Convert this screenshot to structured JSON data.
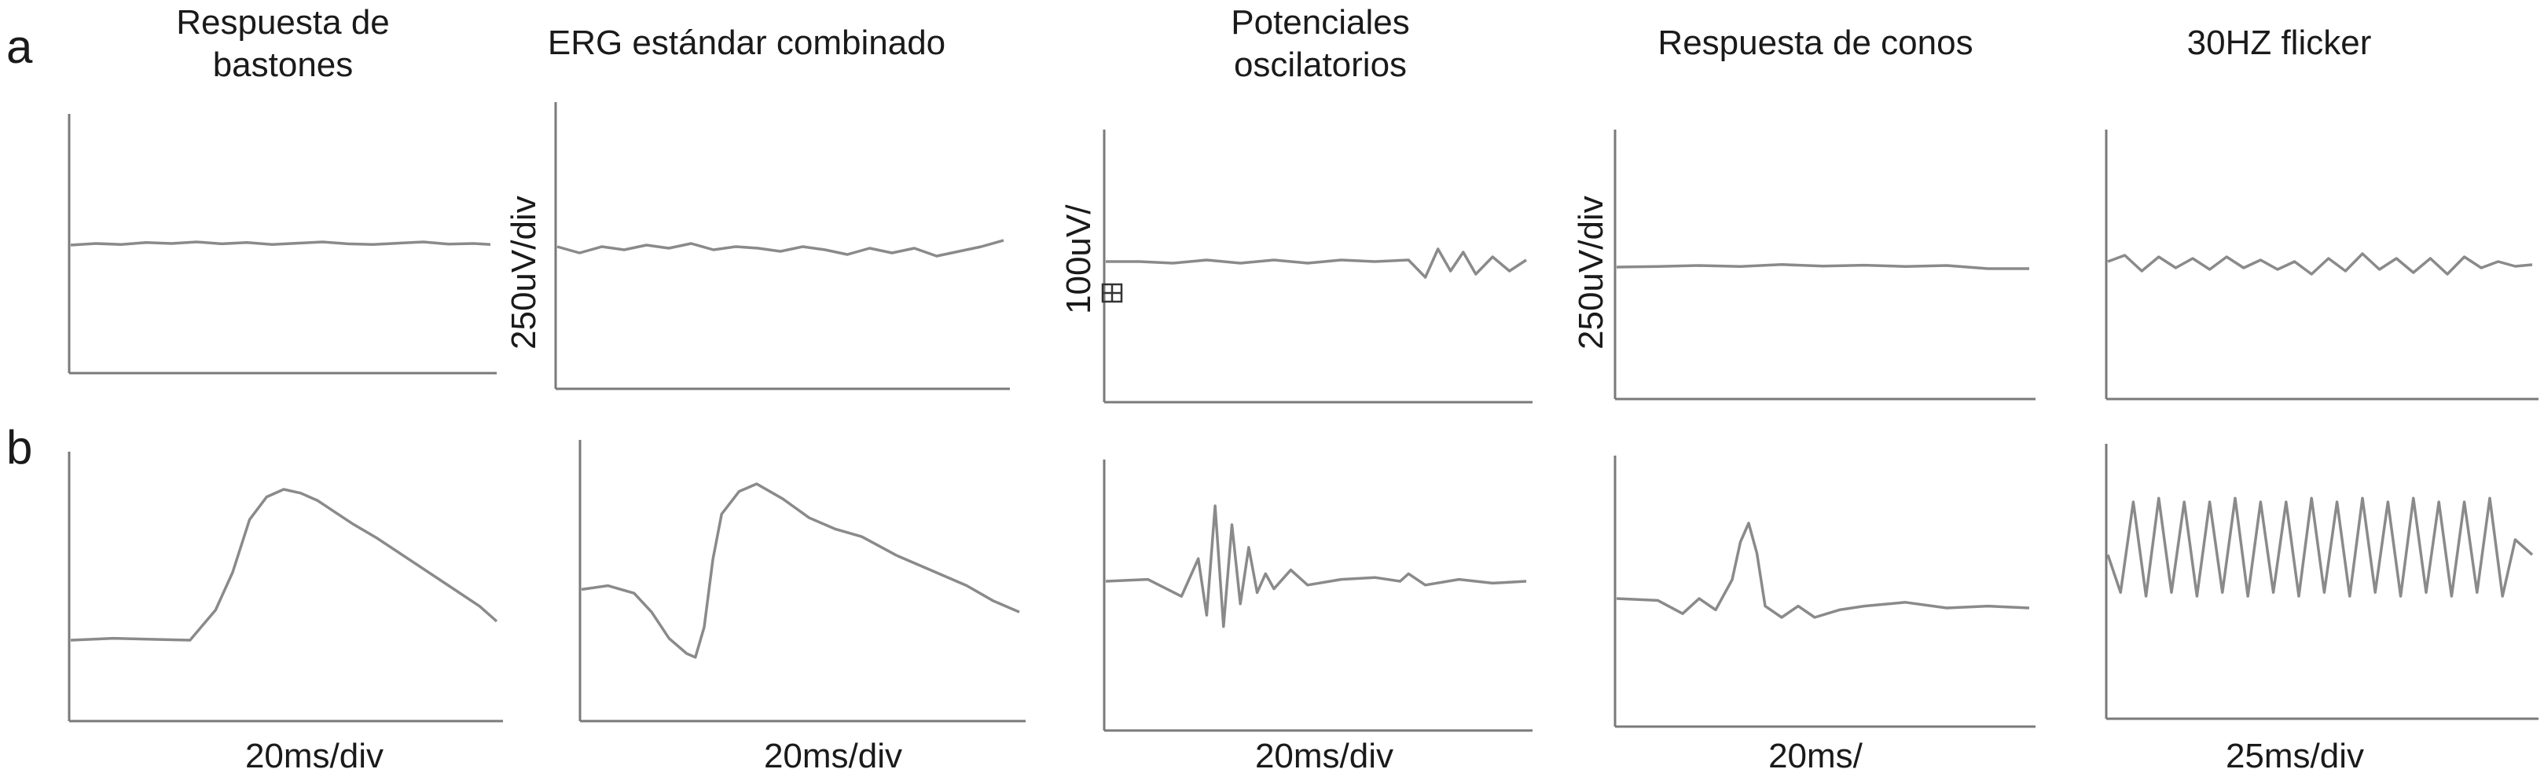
{
  "row_labels": [
    "a",
    "b"
  ],
  "column_titles": [
    "Respuesta de\nbastones",
    "ERG estándar combinado",
    "Potenciales\noscilatorios",
    "Respuesta de conos",
    "30HZ flicker"
  ],
  "x_scale_labels": [
    "20ms/div",
    "20ms/div",
    "20ms/div",
    "20ms/",
    "25ms/div"
  ],
  "y_scale_labels": [
    "250uV/div",
    "100uV/",
    "250uV/div"
  ],
  "colors": {
    "trace": "#8a8a8a",
    "axis": "#7a7a7a",
    "text": "#1a1a1a"
  },
  "chart_data": [
    {
      "type": "line",
      "row": "a",
      "column": "Respuesta de bastones",
      "x": [
        0,
        6,
        12,
        18,
        24,
        30,
        36,
        42,
        48,
        54,
        60,
        66,
        72,
        78,
        84,
        90,
        96,
        100
      ],
      "y": [
        0,
        0.05,
        0.02,
        0.08,
        0.05,
        0.1,
        0.04,
        0.08,
        0.02,
        0.06,
        0.1,
        0.04,
        0.02,
        0.06,
        0.1,
        0.03,
        0.05,
        0.02
      ]
    },
    {
      "type": "line",
      "row": "a",
      "column": "ERG estándar combinado",
      "x": [
        0,
        5,
        10,
        15,
        20,
        25,
        30,
        35,
        40,
        45,
        50,
        55,
        60,
        65,
        70,
        75,
        80,
        85,
        90,
        95,
        100
      ],
      "y": [
        0.1,
        -0.1,
        0.1,
        0,
        0.15,
        0.05,
        0.2,
        0,
        0.1,
        0.05,
        -0.05,
        0.1,
        0,
        -0.15,
        0.05,
        -0.1,
        0.05,
        -0.2,
        -0.05,
        0.1,
        0.3
      ]
    },
    {
      "type": "line",
      "row": "a",
      "column": "Potenciales oscilatorios",
      "x": [
        0,
        8,
        16,
        24,
        32,
        40,
        48,
        56,
        64,
        72,
        76,
        79,
        82,
        85,
        88,
        92,
        96,
        100
      ],
      "y": [
        0,
        0,
        -0.05,
        0.05,
        -0.05,
        0.05,
        -0.05,
        0.05,
        0,
        0.05,
        -0.5,
        0.4,
        -0.3,
        0.3,
        -0.4,
        0.15,
        -0.3,
        0.05
      ]
    },
    {
      "type": "line",
      "row": "a",
      "column": "Respuesta de conos",
      "x": [
        0,
        10,
        20,
        30,
        40,
        50,
        60,
        70,
        80,
        90,
        100
      ],
      "y": [
        0,
        0.02,
        0.05,
        0.02,
        0.08,
        0.03,
        0.06,
        0.02,
        0.05,
        -0.05,
        -0.05
      ]
    },
    {
      "type": "line",
      "row": "a",
      "column": "30HZ flicker",
      "x": [
        0,
        4,
        8,
        12,
        16,
        20,
        24,
        28,
        32,
        36,
        40,
        44,
        48,
        52,
        56,
        60,
        64,
        68,
        72,
        76,
        80,
        84,
        88,
        92,
        96,
        100
      ],
      "y": [
        0.1,
        0.3,
        -0.2,
        0.25,
        -0.1,
        0.2,
        -0.15,
        0.25,
        -0.1,
        0.15,
        -0.15,
        0.1,
        -0.3,
        0.2,
        -0.2,
        0.35,
        -0.15,
        0.2,
        -0.25,
        0.2,
        -0.3,
        0.25,
        -0.1,
        0.1,
        -0.05,
        0
      ]
    },
    {
      "type": "line",
      "row": "b",
      "column": "Respuesta de bastones",
      "x": [
        0,
        10,
        20,
        28,
        34,
        38,
        42,
        46,
        50,
        54,
        58,
        62,
        66,
        72,
        80,
        88,
        96,
        100
      ],
      "y": [
        0,
        0.05,
        0.02,
        0,
        0.8,
        1.8,
        3.2,
        3.8,
        4.0,
        3.9,
        3.7,
        3.4,
        3.1,
        2.7,
        2.1,
        1.5,
        0.9,
        0.5
      ]
    },
    {
      "type": "line",
      "row": "b",
      "column": "ERG estándar combinado",
      "x": [
        0,
        6,
        12,
        16,
        20,
        24,
        26,
        28,
        30,
        32,
        36,
        40,
        46,
        52,
        58,
        64,
        72,
        80,
        88,
        94,
        100
      ],
      "y": [
        0.2,
        0.3,
        0.1,
        -0.4,
        -1.1,
        -1.5,
        -1.6,
        -0.8,
        1.0,
        2.2,
        2.8,
        3.0,
        2.6,
        2.1,
        1.8,
        1.6,
        1.1,
        0.7,
        0.3,
        -0.1,
        -0.4
      ]
    },
    {
      "type": "line",
      "row": "b",
      "column": "Potenciales oscilatorios",
      "x": [
        0,
        10,
        18,
        22,
        24,
        26,
        28,
        30,
        32,
        34,
        36,
        38,
        40,
        44,
        48,
        56,
        64,
        70,
        72,
        76,
        84,
        92,
        100
      ],
      "y": [
        0,
        0.05,
        -0.4,
        0.6,
        -0.9,
        2.0,
        -1.2,
        1.5,
        -0.6,
        0.9,
        -0.3,
        0.2,
        -0.2,
        0.3,
        -0.1,
        0.05,
        0.1,
        0,
        0.2,
        -0.1,
        0.05,
        -0.05,
        0
      ]
    },
    {
      "type": "line",
      "row": "b",
      "column": "Respuesta de conos",
      "x": [
        0,
        10,
        16,
        20,
        24,
        28,
        30,
        32,
        34,
        36,
        40,
        44,
        48,
        54,
        60,
        70,
        80,
        90,
        100
      ],
      "y": [
        0,
        -0.05,
        -0.4,
        0,
        -0.3,
        0.5,
        1.5,
        2.0,
        1.2,
        -0.2,
        -0.5,
        -0.2,
        -0.5,
        -0.3,
        -0.2,
        -0.1,
        -0.25,
        -0.2,
        -0.25
      ]
    },
    {
      "type": "line",
      "row": "b",
      "column": "30HZ flicker",
      "x": [
        0,
        3,
        6,
        9,
        12,
        15,
        18,
        21,
        24,
        27,
        30,
        33,
        36,
        39,
        42,
        45,
        48,
        51,
        54,
        57,
        60,
        63,
        66,
        69,
        72,
        75,
        78,
        81,
        84,
        87,
        90,
        93,
        96,
        100
      ],
      "y": [
        0.6,
        -0.4,
        2.0,
        -0.5,
        2.1,
        -0.4,
        2.0,
        -0.5,
        2.0,
        -0.4,
        2.1,
        -0.5,
        2.0,
        -0.4,
        2.0,
        -0.5,
        2.1,
        -0.4,
        2.0,
        -0.5,
        2.1,
        -0.4,
        2.0,
        -0.5,
        2.1,
        -0.4,
        2.0,
        -0.5,
        2.0,
        -0.4,
        2.1,
        -0.5,
        1.0,
        0.6
      ]
    }
  ]
}
